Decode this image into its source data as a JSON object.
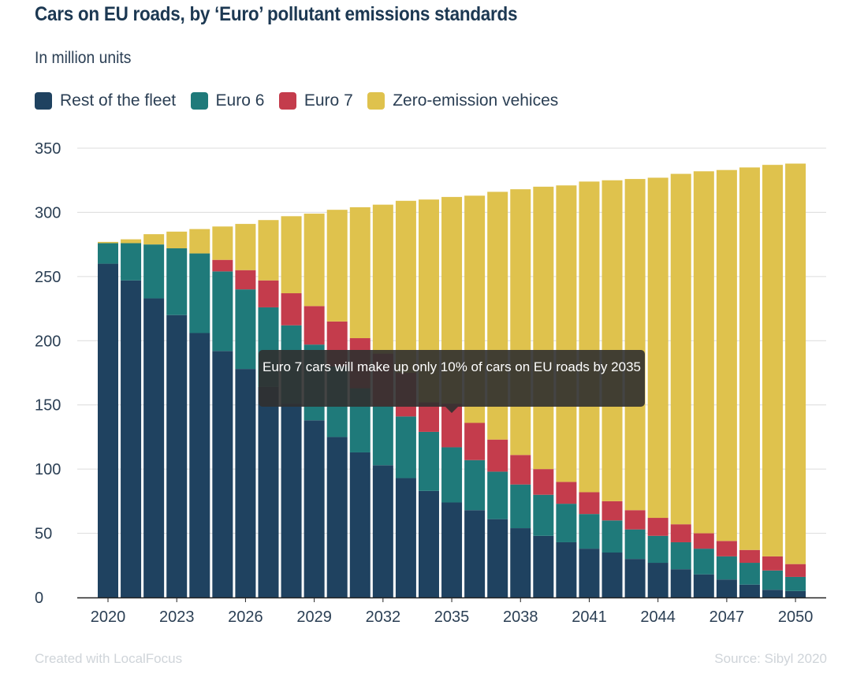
{
  "title": "Cars on EU roads, by ‘Euro’ pollutant emissions standards",
  "subtitle": "In million units",
  "legend": [
    {
      "label": "Rest of the fleet",
      "color": "#1f4260"
    },
    {
      "label": "Euro 6",
      "color": "#1f7a7a"
    },
    {
      "label": "Euro 7",
      "color": "#c43c4c"
    },
    {
      "label": "Zero-emission vehices",
      "color": "#dfc24d"
    }
  ],
  "tooltip": "Euro 7 cars will make up only 10% of cars on EU roads by 2035",
  "credit": "Created with LocalFocus",
  "source": "Source:  Sibyl 2020",
  "chart_data": {
    "type": "bar",
    "stacked": true,
    "title": "Cars on EU roads, by ‘Euro’ pollutant emissions standards",
    "subtitle": "In million units",
    "xlabel": "",
    "ylabel": "",
    "ylim": [
      0,
      350
    ],
    "yticks": [
      0,
      50,
      100,
      150,
      200,
      250,
      300,
      350
    ],
    "xtick_labels": [
      "2020",
      "2023",
      "2026",
      "2029",
      "2032",
      "2035",
      "2038",
      "2041",
      "2044",
      "2047",
      "2050"
    ],
    "grid": true,
    "legend_position": "top-left",
    "categories": [
      "2020",
      "2021",
      "2022",
      "2023",
      "2024",
      "2025",
      "2026",
      "2027",
      "2028",
      "2029",
      "2030",
      "2031",
      "2032",
      "2033",
      "2034",
      "2035",
      "2036",
      "2037",
      "2038",
      "2039",
      "2040",
      "2041",
      "2042",
      "2043",
      "2044",
      "2045",
      "2046",
      "2047",
      "2048",
      "2049",
      "2050"
    ],
    "series": [
      {
        "name": "Rest of the fleet",
        "color": "#1f4260",
        "values": [
          260,
          247,
          233,
          220,
          206,
          192,
          178,
          164,
          151,
          138,
          125,
          113,
          103,
          93,
          83,
          74,
          68,
          61,
          54,
          48,
          43,
          38,
          35,
          30,
          27,
          22,
          18,
          14,
          10,
          6,
          5
        ]
      },
      {
        "name": "Euro 6",
        "color": "#1f7a7a",
        "values": [
          16,
          29,
          42,
          52,
          62,
          62,
          62,
          62,
          61,
          59,
          55,
          50,
          46,
          48,
          46,
          43,
          39,
          37,
          34,
          32,
          30,
          27,
          25,
          23,
          21,
          21,
          20,
          18,
          17,
          15,
          11
        ]
      },
      {
        "name": "Euro 7",
        "color": "#c43c4c",
        "values": [
          0,
          0,
          0,
          0,
          0,
          9,
          15,
          21,
          25,
          30,
          35,
          39,
          41,
          34,
          23,
          34,
          29,
          25,
          23,
          20,
          17,
          17,
          15,
          15,
          14,
          14,
          12,
          12,
          10,
          11,
          10
        ]
      },
      {
        "name": "Zero-emission vehices",
        "color": "#dfc24d",
        "values": [
          1,
          3,
          8,
          13,
          19,
          26,
          36,
          47,
          60,
          72,
          87,
          102,
          116,
          134,
          158,
          161,
          177,
          193,
          207,
          220,
          231,
          242,
          250,
          258,
          265,
          273,
          282,
          289,
          298,
          305,
          312
        ]
      }
    ]
  }
}
